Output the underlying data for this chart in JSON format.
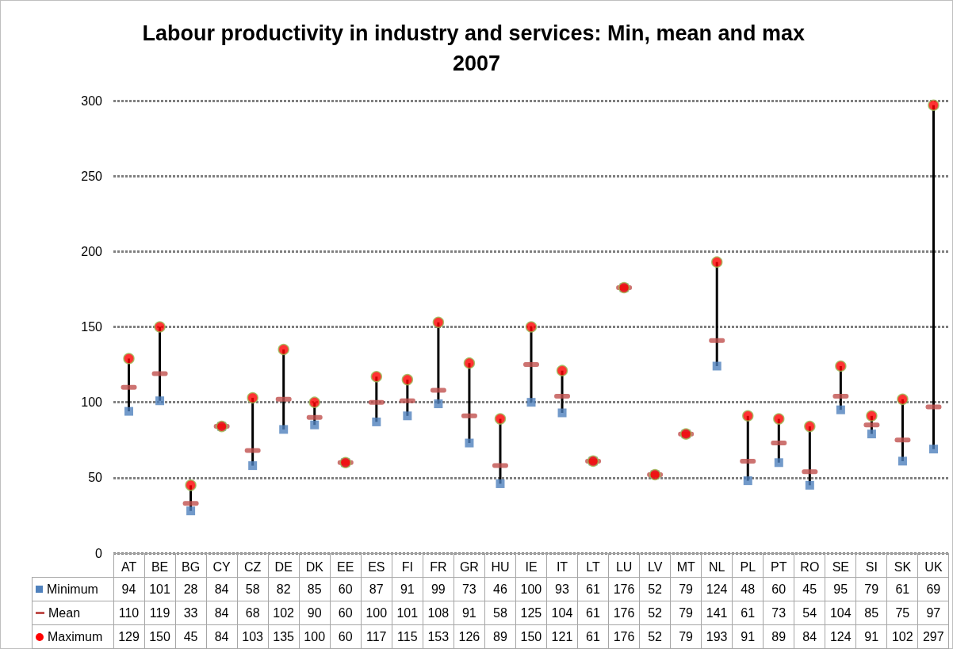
{
  "chart_data": {
    "type": "scatter",
    "title": "Labour productivity in industry and services: Min, mean and max 2007",
    "categories": [
      "AT",
      "BE",
      "BG",
      "CY",
      "CZ",
      "DE",
      "DK",
      "EE",
      "ES",
      "FI",
      "FR",
      "GR",
      "HU",
      "IE",
      "IT",
      "LT",
      "LU",
      "LV",
      "MT",
      "NL",
      "PL",
      "PT",
      "RO",
      "SE",
      "SI",
      "SK",
      "UK"
    ],
    "series": [
      {
        "name": "Minimum",
        "color": "#4f81bd",
        "marker": "square",
        "values": [
          94,
          101,
          28,
          84,
          58,
          82,
          85,
          60,
          87,
          91,
          99,
          73,
          46,
          100,
          93,
          61,
          176,
          52,
          79,
          124,
          48,
          60,
          45,
          95,
          79,
          61,
          69
        ]
      },
      {
        "name": "Mean",
        "color": "#c0504d",
        "values": [
          110,
          119,
          33,
          84,
          68,
          102,
          90,
          60,
          100,
          101,
          108,
          91,
          58,
          125,
          104,
          61,
          176,
          52,
          79,
          141,
          61,
          73,
          54,
          104,
          85,
          75,
          97
        ]
      },
      {
        "name": "Maximum",
        "color": "#ff0000",
        "marker": "circle",
        "values": [
          129,
          150,
          45,
          84,
          103,
          135,
          100,
          60,
          117,
          115,
          153,
          126,
          89,
          150,
          121,
          61,
          176,
          52,
          79,
          193,
          91,
          89,
          84,
          124,
          91,
          102,
          297
        ]
      }
    ],
    "ylim": [
      0,
      300
    ],
    "yticks": [
      0,
      50,
      100,
      150,
      200,
      250,
      300
    ],
    "grid": "y",
    "legend": "bottom left",
    "data_labels": true
  }
}
